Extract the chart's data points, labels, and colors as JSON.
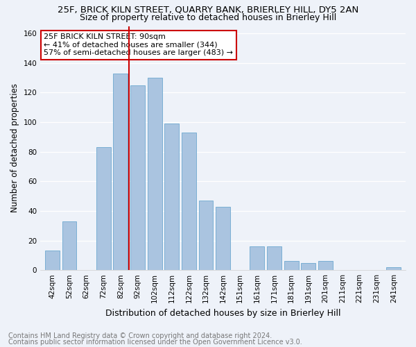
{
  "title": "25F, BRICK KILN STREET, QUARRY BANK, BRIERLEY HILL, DY5 2AN",
  "subtitle": "Size of property relative to detached houses in Brierley Hill",
  "xlabel": "Distribution of detached houses by size in Brierley Hill",
  "ylabel": "Number of detached properties",
  "footer1": "Contains HM Land Registry data © Crown copyright and database right 2024.",
  "footer2": "Contains public sector information licensed under the Open Government Licence v3.0.",
  "bar_labels": [
    "42sqm",
    "52sqm",
    "62sqm",
    "72sqm",
    "82sqm",
    "92sqm",
    "102sqm",
    "112sqm",
    "122sqm",
    "132sqm",
    "142sqm",
    "151sqm",
    "161sqm",
    "171sqm",
    "181sqm",
    "191sqm",
    "201sqm",
    "211sqm",
    "221sqm",
    "231sqm",
    "241sqm"
  ],
  "bar_values": [
    13,
    33,
    0,
    83,
    133,
    125,
    130,
    99,
    93,
    47,
    43,
    0,
    16,
    16,
    6,
    5,
    6,
    0,
    0,
    0,
    2
  ],
  "bar_color": "#aac4e0",
  "bar_edgecolor": "#7aafd4",
  "vline_x": 4,
  "vline_color": "#cc0000",
  "annotation_text": "25F BRICK KILN STREET: 90sqm\n← 41% of detached houses are smaller (344)\n57% of semi-detached houses are larger (483) →",
  "annotation_box_edgecolor": "#cc0000",
  "annotation_box_facecolor": "#ffffff",
  "ylim": [
    0,
    165
  ],
  "xlim_left": -0.7,
  "xlim_right": 20.7,
  "background_color": "#eef2f9",
  "grid_color": "#ffffff",
  "title_fontsize": 9.5,
  "subtitle_fontsize": 9,
  "xlabel_fontsize": 9,
  "ylabel_fontsize": 8.5,
  "tick_fontsize": 7.5,
  "annotation_fontsize": 8,
  "footer_fontsize": 7
}
